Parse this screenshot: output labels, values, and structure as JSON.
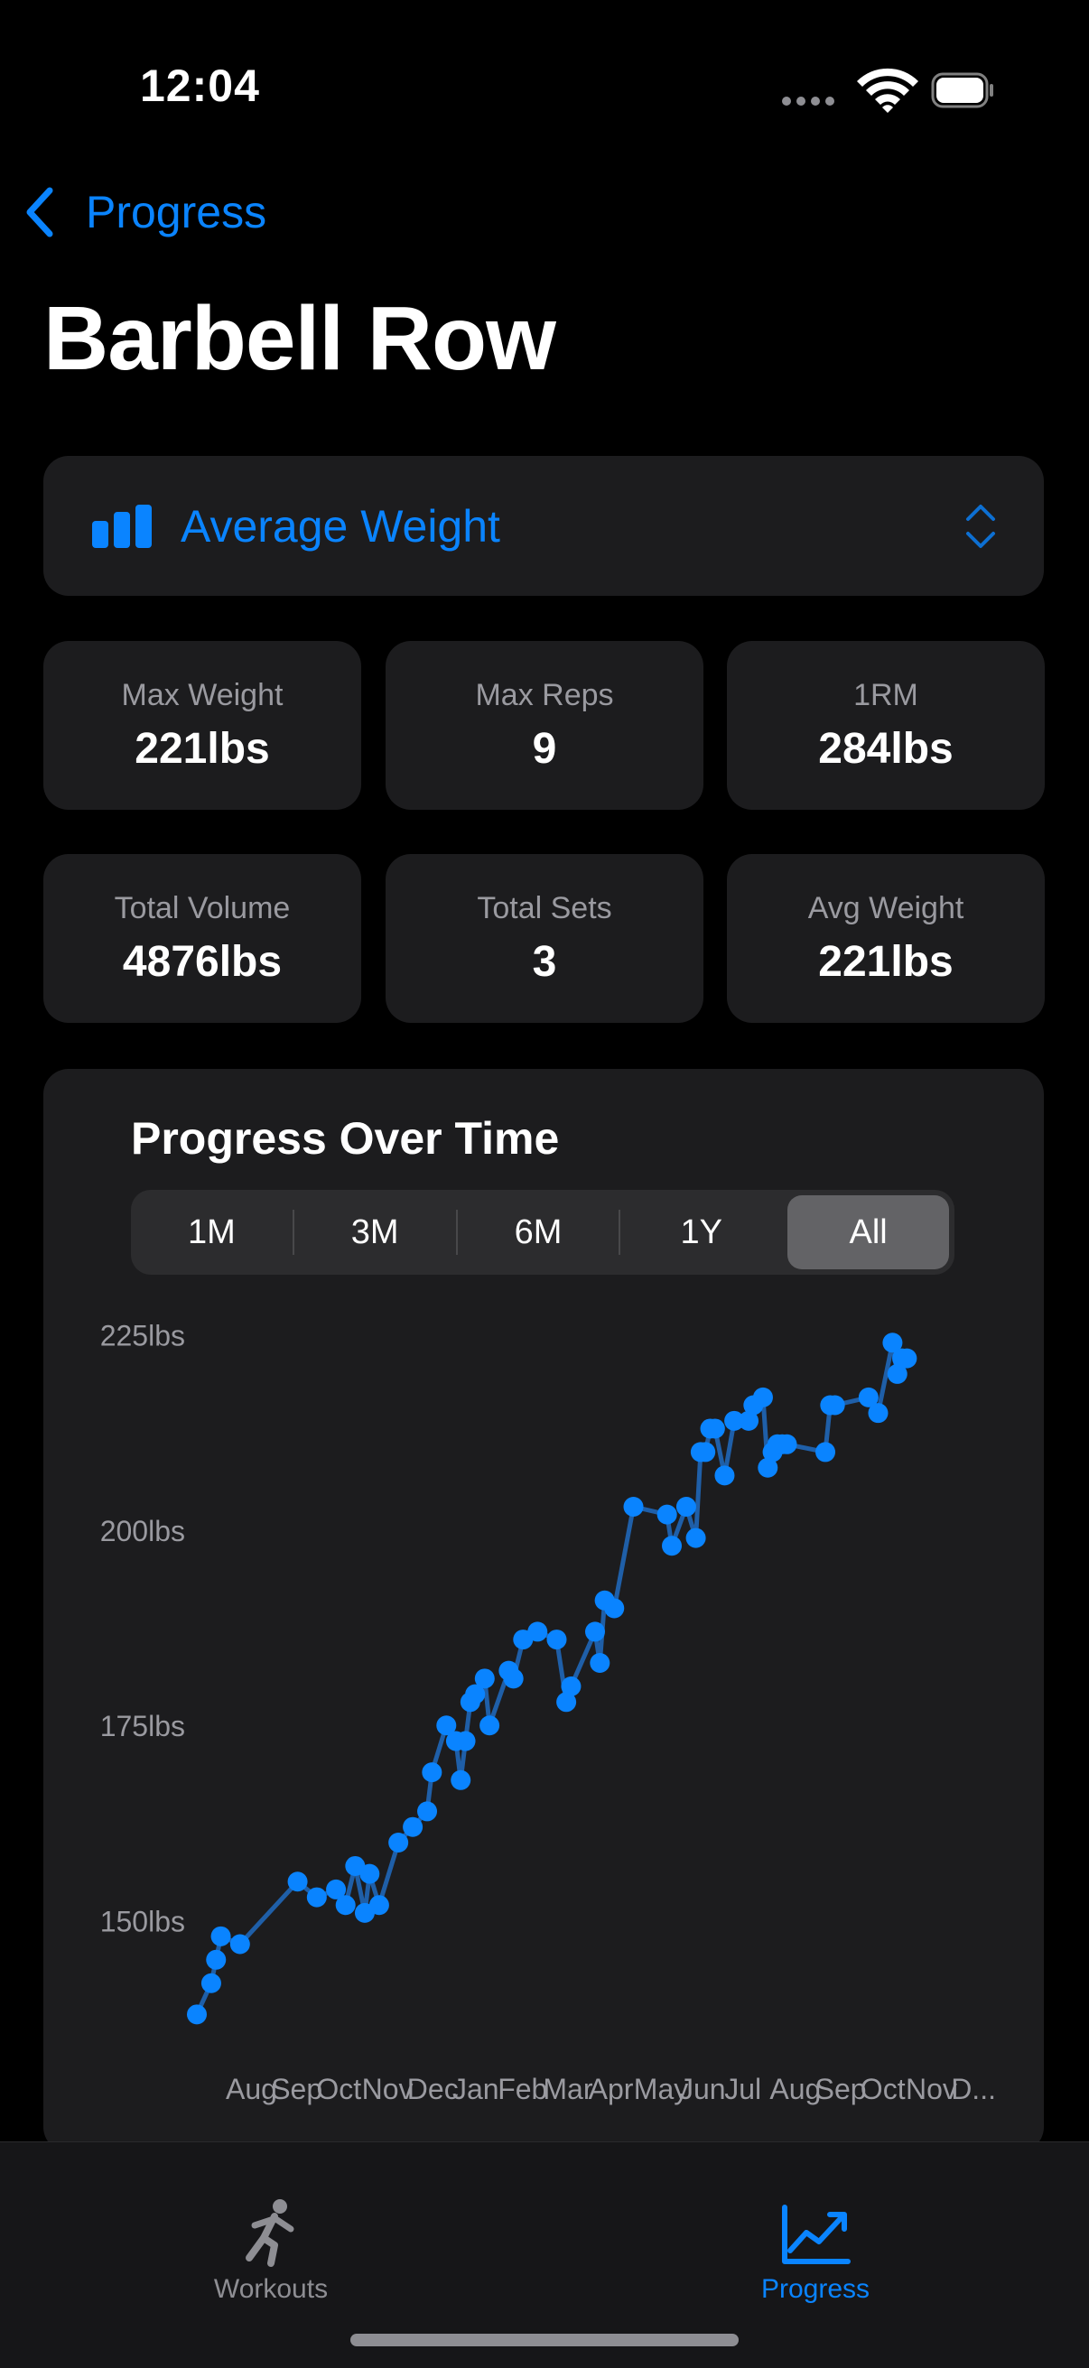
{
  "status": {
    "time": "12:04"
  },
  "nav": {
    "back_label": "Progress"
  },
  "title": "Barbell Row",
  "metric_picker": {
    "selected": "Average Weight"
  },
  "stats": [
    {
      "label": "Max Weight",
      "value": "221lbs"
    },
    {
      "label": "Max Reps",
      "value": "9"
    },
    {
      "label": "1RM",
      "value": "284lbs"
    },
    {
      "label": "Total Volume",
      "value": "4876lbs"
    },
    {
      "label": "Total Sets",
      "value": "3"
    },
    {
      "label": "Avg Weight",
      "value": "221lbs"
    }
  ],
  "chart_section": {
    "title": "Progress Over Time",
    "ranges": [
      "1M",
      "3M",
      "6M",
      "1Y",
      "All"
    ],
    "selected_range": "All"
  },
  "chart_data": {
    "type": "line",
    "title": "",
    "xlabel": "",
    "ylabel": "",
    "y_tick_labels": [
      "225lbs",
      "200lbs",
      "175lbs",
      "150lbs"
    ],
    "y_ticks": [
      225,
      200,
      175,
      150
    ],
    "ylim": [
      137,
      226
    ],
    "x_tick_labels": [
      "Aug",
      "Sep",
      "Oct",
      "Nov",
      "Dec",
      "Jan",
      "Feb",
      "Mar",
      "Apr",
      "May",
      "Jun",
      "Jul",
      "Aug",
      "Sep",
      "Oct",
      "Nov",
      "D..."
    ],
    "xlim": [
      0,
      16.6
    ],
    "grid": false,
    "color": "#0a84ff",
    "line_color": "#1f5fa8",
    "series": [
      {
        "x": [
          0.0,
          0.3,
          0.4,
          0.5,
          0.9,
          2.1,
          2.5,
          2.9,
          3.1,
          3.3,
          3.5,
          3.6,
          3.8,
          4.2,
          4.5,
          4.8,
          4.9,
          5.2,
          5.4,
          5.5,
          5.6,
          5.7,
          5.8,
          6.0,
          6.1,
          6.5,
          6.6,
          6.8,
          7.1,
          7.5,
          7.7,
          7.8,
          8.3,
          8.4,
          8.5,
          8.7,
          9.1,
          9.8,
          9.9,
          10.2,
          10.4,
          10.5,
          10.6,
          10.7,
          10.8,
          11.0,
          11.2,
          11.5,
          11.6,
          11.8,
          11.9,
          12.0,
          12.1,
          12.2,
          12.3,
          13.1,
          13.2,
          13.3,
          14.0,
          14.2,
          14.5,
          14.6,
          14.7,
          14.8
        ],
        "y": [
          138,
          142,
          145,
          148,
          147,
          155,
          153,
          154,
          152,
          157,
          151,
          156,
          152,
          160,
          162,
          164,
          169,
          175,
          173,
          168,
          173,
          178,
          179,
          181,
          175,
          182,
          181,
          186,
          187,
          186,
          178,
          180,
          187,
          183,
          191,
          190,
          203,
          202,
          198,
          203,
          199,
          210,
          210,
          213,
          213,
          207,
          214,
          214,
          216,
          217,
          208,
          210,
          211,
          211,
          211,
          210,
          216,
          216,
          217,
          215,
          224,
          220,
          222,
          222
        ]
      }
    ]
  },
  "tabs": [
    {
      "label": "Workouts",
      "icon": "running-person-icon",
      "color": "#8e8e93"
    },
    {
      "label": "Progress",
      "icon": "chart-trend-icon",
      "color": "#0a84ff"
    }
  ]
}
